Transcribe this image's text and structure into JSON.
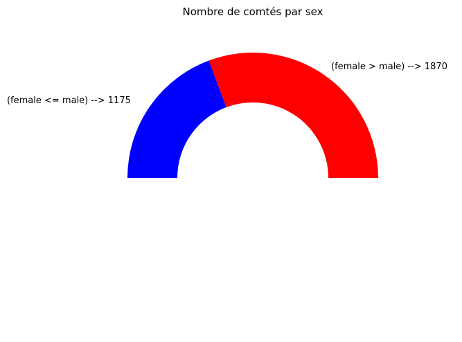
{
  "chart_data": {
    "type": "pie",
    "variant": "half-donut",
    "title": "Nombre de comtés par sex",
    "slices": [
      {
        "label": "(female <= male) --> 1175",
        "category": "female <= male",
        "value": 1175,
        "color": "#0000ff"
      },
      {
        "label": "(female > male) --> 1870",
        "category": "female > male",
        "value": 1870,
        "color": "#ff0000"
      }
    ],
    "legend": false,
    "grid": false
  }
}
